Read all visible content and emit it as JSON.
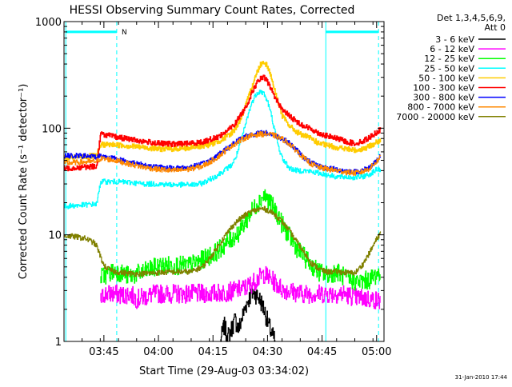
{
  "chart_data": {
    "type": "line",
    "title": "HESSI Observing Summary Count Rates, Corrected",
    "xlabel": "Start Time (29-Aug-03 03:34:02)",
    "ylabel": "Corrected Count Rate (s⁻¹ detector⁻¹)",
    "x_unit": "minutes after 03:34:02",
    "xlim": [
      0,
      88
    ],
    "ylim": [
      1,
      1000
    ],
    "y_scale": "log",
    "x_ticks": [
      {
        "label": "03:45",
        "x": 10.97
      },
      {
        "label": "04:00",
        "x": 25.97
      },
      {
        "label": "04:15",
        "x": 40.97
      },
      {
        "label": "04:30",
        "x": 55.97
      },
      {
        "label": "04:45",
        "x": 70.97
      },
      {
        "label": "05:00",
        "x": 85.97
      }
    ],
    "y_ticks": [
      {
        "label": "1",
        "y": 1
      },
      {
        "label": "10",
        "y": 10
      },
      {
        "label": "100",
        "y": 100
      },
      {
        "label": "1000",
        "y": 1000
      }
    ],
    "legend_title": [
      "Det 1,3,4,5,6,9,",
      "Att 0"
    ],
    "legend_position": "right, outside plot",
    "flag_label": "N",
    "footer_date": "31-Jan-2010 17:44",
    "markers": {
      "vertical_lines_dashed": [
        14.5,
        86.5
      ],
      "vertical_lines_solid": [
        0.5,
        72.0
      ],
      "bars": [
        {
          "x_from": 0.5,
          "x_to": 14.5,
          "y": 800
        },
        {
          "x_from": 72.0,
          "x_to": 86.5,
          "y": 800
        }
      ]
    },
    "series": [
      {
        "name": "3 - 6 keV",
        "color": "#000000",
        "points": [
          [
            43,
            1
          ],
          [
            44,
            1.4
          ],
          [
            45,
            1.1
          ],
          [
            46,
            1.3
          ],
          [
            47,
            1.6
          ],
          [
            48,
            1.3
          ],
          [
            49,
            1.7
          ],
          [
            50,
            2.2
          ],
          [
            51,
            2.6
          ],
          [
            52,
            2.9
          ],
          [
            53,
            2.7
          ],
          [
            54,
            2.4
          ],
          [
            55,
            2.0
          ],
          [
            56,
            1.5
          ],
          [
            57,
            1.2
          ],
          [
            58,
            1
          ]
        ]
      },
      {
        "name": "6 - 12 keV",
        "color": "#ff00ff",
        "points": [
          [
            10,
            2.4
          ],
          [
            11,
            2.8
          ],
          [
            14,
            2.8
          ],
          [
            16,
            2.7
          ],
          [
            18,
            2.8
          ],
          [
            20,
            2.5
          ],
          [
            25,
            2.8
          ],
          [
            30,
            2.8
          ],
          [
            35,
            2.8
          ],
          [
            40,
            2.8
          ],
          [
            45,
            2.9
          ],
          [
            50,
            3.2
          ],
          [
            53,
            3.8
          ],
          [
            55,
            4.3
          ],
          [
            57,
            3.8
          ],
          [
            60,
            3.1
          ],
          [
            65,
            2.8
          ],
          [
            70,
            2.8
          ],
          [
            75,
            2.8
          ],
          [
            77,
            2.8
          ],
          [
            80,
            2.6
          ],
          [
            84,
            2.5
          ],
          [
            87,
            2.4
          ]
        ]
      },
      {
        "name": "12 - 25 keV",
        "color": "#00ff00",
        "points": [
          [
            10,
            4.0
          ],
          [
            14,
            4.6
          ],
          [
            18,
            4.1
          ],
          [
            22,
            4.5
          ],
          [
            26,
            5.1
          ],
          [
            30,
            5.2
          ],
          [
            34,
            5.1
          ],
          [
            38,
            5.8
          ],
          [
            42,
            7.0
          ],
          [
            45,
            8.5
          ],
          [
            48,
            10.5
          ],
          [
            50,
            13.5
          ],
          [
            52,
            17.5
          ],
          [
            54,
            21.5
          ],
          [
            55,
            23.5
          ],
          [
            56,
            21.5
          ],
          [
            58,
            17
          ],
          [
            60,
            12.5
          ],
          [
            62,
            9.5
          ],
          [
            64,
            7.5
          ],
          [
            66,
            6.2
          ],
          [
            68,
            5.2
          ],
          [
            70,
            4.5
          ],
          [
            72,
            4.2
          ],
          [
            75,
            4.5
          ],
          [
            78,
            3.8
          ],
          [
            81,
            3.6
          ],
          [
            84,
            3.8
          ],
          [
            87,
            4.5
          ]
        ]
      },
      {
        "name": "25 - 50 keV",
        "color": "#00ffff",
        "points": [
          [
            0,
            18.5
          ],
          [
            5,
            19
          ],
          [
            9,
            19.5
          ],
          [
            10,
            31.5
          ],
          [
            14,
            31.5
          ],
          [
            18,
            31
          ],
          [
            22,
            30
          ],
          [
            26,
            30
          ],
          [
            30,
            29.5
          ],
          [
            34,
            29.5
          ],
          [
            36,
            29.5
          ],
          [
            38,
            30.5
          ],
          [
            40,
            33
          ],
          [
            42,
            36
          ],
          [
            44,
            40
          ],
          [
            46,
            45
          ],
          [
            47,
            51
          ],
          [
            48,
            64
          ],
          [
            49,
            84
          ],
          [
            50,
            112
          ],
          [
            51,
            150
          ],
          [
            52,
            185
          ],
          [
            53,
            215
          ],
          [
            54,
            222
          ],
          [
            55,
            210
          ],
          [
            56,
            175
          ],
          [
            57,
            132
          ],
          [
            58,
            92
          ],
          [
            59,
            66
          ],
          [
            60,
            52
          ],
          [
            62,
            42
          ],
          [
            64,
            40
          ],
          [
            66,
            40
          ],
          [
            70,
            38
          ],
          [
            75,
            35
          ],
          [
            80,
            34.5
          ],
          [
            82,
            35
          ],
          [
            84,
            37
          ],
          [
            86,
            41
          ],
          [
            87,
            41
          ]
        ]
      },
      {
        "name": "50 - 100 keV",
        "color": "#ffcc00",
        "points": [
          [
            0,
            52
          ],
          [
            5,
            54
          ],
          [
            9,
            55
          ],
          [
            10,
            70
          ],
          [
            14,
            70
          ],
          [
            18,
            68
          ],
          [
            22,
            66
          ],
          [
            26,
            64
          ],
          [
            30,
            64
          ],
          [
            34,
            65
          ],
          [
            38,
            68
          ],
          [
            40,
            70
          ],
          [
            42,
            74
          ],
          [
            44,
            80
          ],
          [
            46,
            90
          ],
          [
            47,
            98
          ],
          [
            48,
            112
          ],
          [
            49,
            132
          ],
          [
            50,
            165
          ],
          [
            51,
            210
          ],
          [
            52,
            270
          ],
          [
            53,
            330
          ],
          [
            54,
            400
          ],
          [
            55,
            420
          ],
          [
            56,
            380
          ],
          [
            57,
            300
          ],
          [
            58,
            220
          ],
          [
            59,
            170
          ],
          [
            60,
            130
          ],
          [
            62,
            105
          ],
          [
            64,
            92
          ],
          [
            66,
            85
          ],
          [
            68,
            80
          ],
          [
            70,
            72
          ],
          [
            75,
            66
          ],
          [
            80,
            62
          ],
          [
            83,
            65
          ],
          [
            86,
            74
          ],
          [
            87,
            75
          ]
        ]
      },
      {
        "name": "100 - 300 keV",
        "color": "#ff0000",
        "points": [
          [
            0,
            42
          ],
          [
            5,
            43
          ],
          [
            9,
            44
          ],
          [
            10,
            88
          ],
          [
            12,
            86
          ],
          [
            14,
            83
          ],
          [
            18,
            79
          ],
          [
            22,
            75
          ],
          [
            26,
            72
          ],
          [
            30,
            71
          ],
          [
            34,
            72
          ],
          [
            38,
            74
          ],
          [
            40,
            78
          ],
          [
            42,
            82
          ],
          [
            44,
            90
          ],
          [
            46,
            102
          ],
          [
            47,
            110
          ],
          [
            48,
            125
          ],
          [
            49,
            140
          ],
          [
            50,
            160
          ],
          [
            51,
            190
          ],
          [
            52,
            230
          ],
          [
            53,
            265
          ],
          [
            54,
            290
          ],
          [
            55,
            298
          ],
          [
            56,
            270
          ],
          [
            57,
            230
          ],
          [
            58,
            195
          ],
          [
            59,
            170
          ],
          [
            60,
            150
          ],
          [
            62,
            130
          ],
          [
            64,
            115
          ],
          [
            66,
            105
          ],
          [
            68,
            98
          ],
          [
            70,
            90
          ],
          [
            72,
            85
          ],
          [
            75,
            80
          ],
          [
            78,
            74
          ],
          [
            80,
            72
          ],
          [
            82,
            75
          ],
          [
            84,
            82
          ],
          [
            86,
            92
          ],
          [
            87,
            97
          ]
        ]
      },
      {
        "name": "300 - 800 keV",
        "color": "#0000ff",
        "points": [
          [
            0,
            55
          ],
          [
            5,
            55
          ],
          [
            9,
            54
          ],
          [
            10,
            55
          ],
          [
            14,
            52
          ],
          [
            18,
            48
          ],
          [
            22,
            45
          ],
          [
            26,
            43
          ],
          [
            30,
            42
          ],
          [
            34,
            43
          ],
          [
            38,
            46
          ],
          [
            40,
            50
          ],
          [
            42,
            55
          ],
          [
            44,
            62
          ],
          [
            46,
            70
          ],
          [
            48,
            78
          ],
          [
            50,
            85
          ],
          [
            52,
            88
          ],
          [
            54,
            90
          ],
          [
            55,
            90
          ],
          [
            56,
            90
          ],
          [
            58,
            86
          ],
          [
            60,
            80
          ],
          [
            62,
            72
          ],
          [
            64,
            62
          ],
          [
            66,
            53
          ],
          [
            68,
            47
          ],
          [
            70,
            44
          ],
          [
            72,
            42.5
          ],
          [
            75,
            41
          ],
          [
            78,
            39.5
          ],
          [
            80,
            39
          ],
          [
            82,
            40
          ],
          [
            84,
            43
          ],
          [
            86,
            50
          ],
          [
            87,
            55
          ]
        ]
      },
      {
        "name": "800 - 7000 keV",
        "color": "#ff8800",
        "points": [
          [
            0,
            47
          ],
          [
            5,
            48
          ],
          [
            9,
            49
          ],
          [
            10,
            52
          ],
          [
            14,
            50
          ],
          [
            18,
            46
          ],
          [
            22,
            43
          ],
          [
            26,
            41
          ],
          [
            30,
            40
          ],
          [
            34,
            41
          ],
          [
            38,
            44
          ],
          [
            40,
            48
          ],
          [
            42,
            53
          ],
          [
            44,
            60
          ],
          [
            46,
            68
          ],
          [
            48,
            75
          ],
          [
            50,
            82
          ],
          [
            52,
            86
          ],
          [
            54,
            88
          ],
          [
            55,
            88
          ],
          [
            56,
            88
          ],
          [
            58,
            85
          ],
          [
            60,
            79
          ],
          [
            62,
            71
          ],
          [
            64,
            61
          ],
          [
            66,
            52
          ],
          [
            68,
            46
          ],
          [
            70,
            43
          ],
          [
            72,
            41.5
          ],
          [
            75,
            40
          ],
          [
            78,
            38.5
          ],
          [
            80,
            38
          ],
          [
            82,
            39
          ],
          [
            84,
            42
          ],
          [
            86,
            49
          ],
          [
            87,
            54
          ]
        ]
      },
      {
        "name": "7000 - 20000 keV",
        "color": "#808000",
        "points": [
          [
            0,
            9.8
          ],
          [
            3,
            9.6
          ],
          [
            6,
            9.2
          ],
          [
            8,
            8.5
          ],
          [
            9,
            7.8
          ],
          [
            10,
            6.2
          ],
          [
            11,
            5.1
          ],
          [
            13,
            4.6
          ],
          [
            16,
            4.4
          ],
          [
            20,
            4.3
          ],
          [
            25,
            4.4
          ],
          [
            30,
            4.5
          ],
          [
            35,
            4.5
          ],
          [
            38,
            5
          ],
          [
            40,
            6
          ],
          [
            42,
            7.5
          ],
          [
            44,
            9.5
          ],
          [
            46,
            11.8
          ],
          [
            48,
            13.8
          ],
          [
            50,
            15.5
          ],
          [
            52,
            16.8
          ],
          [
            54,
            17.5
          ],
          [
            55,
            17.5
          ],
          [
            56,
            17
          ],
          [
            58,
            15.5
          ],
          [
            60,
            13.2
          ],
          [
            62,
            10.8
          ],
          [
            64,
            8.6
          ],
          [
            66,
            6.8
          ],
          [
            68,
            5.4
          ],
          [
            70,
            4.8
          ],
          [
            72,
            4.5
          ],
          [
            75,
            4.5
          ],
          [
            78,
            4.4
          ],
          [
            80,
            4.4
          ],
          [
            82,
            5.2
          ],
          [
            84,
            6.8
          ],
          [
            86,
            9.2
          ],
          [
            87,
            10.5
          ]
        ]
      }
    ]
  }
}
